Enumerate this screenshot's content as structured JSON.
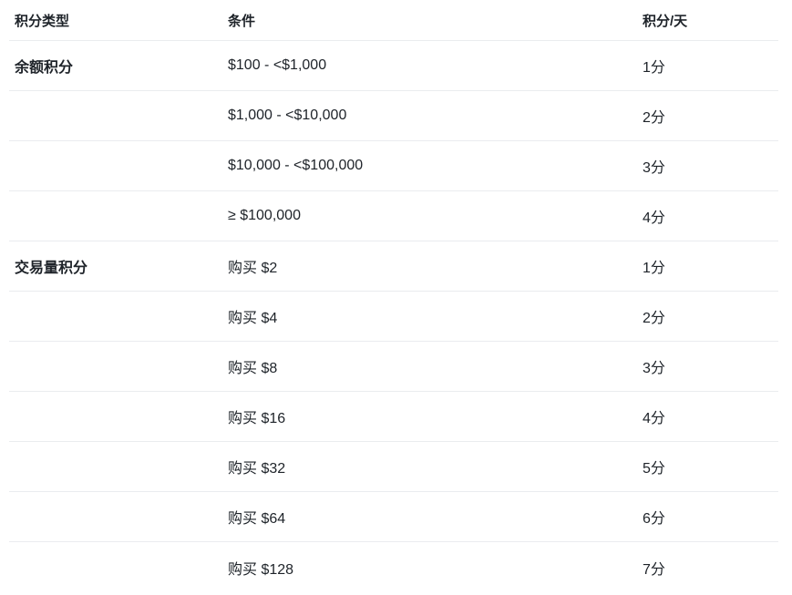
{
  "table": {
    "columns": [
      {
        "key": "type",
        "label": "积分类型"
      },
      {
        "key": "condition",
        "label": "条件"
      },
      {
        "key": "points",
        "label": "积分/天"
      }
    ],
    "rows": [
      {
        "type": "余额积分",
        "condition": "$100 - <$1,000",
        "points": "1分"
      },
      {
        "type": "",
        "condition": "$1,000 - <$10,000",
        "points": "2分"
      },
      {
        "type": "",
        "condition": "$10,000 - <$100,000",
        "points": "3分"
      },
      {
        "type": "",
        "condition": "≥ $100,000",
        "points": "4分"
      },
      {
        "type": "交易量积分",
        "condition": "购买 $2",
        "points": "1分"
      },
      {
        "type": "",
        "condition": "购买 $4",
        "points": "2分"
      },
      {
        "type": "",
        "condition": "购买 $8",
        "points": "3分"
      },
      {
        "type": "",
        "condition": "购买 $16",
        "points": "4分"
      },
      {
        "type": "",
        "condition": "购买 $32",
        "points": "5分"
      },
      {
        "type": "",
        "condition": "购买 $64",
        "points": "6分"
      },
      {
        "type": "",
        "condition": "购买 $128",
        "points": "7分"
      }
    ],
    "colors": {
      "text": "#1e2329",
      "divider": "#eaecef",
      "background": "#ffffff"
    }
  }
}
